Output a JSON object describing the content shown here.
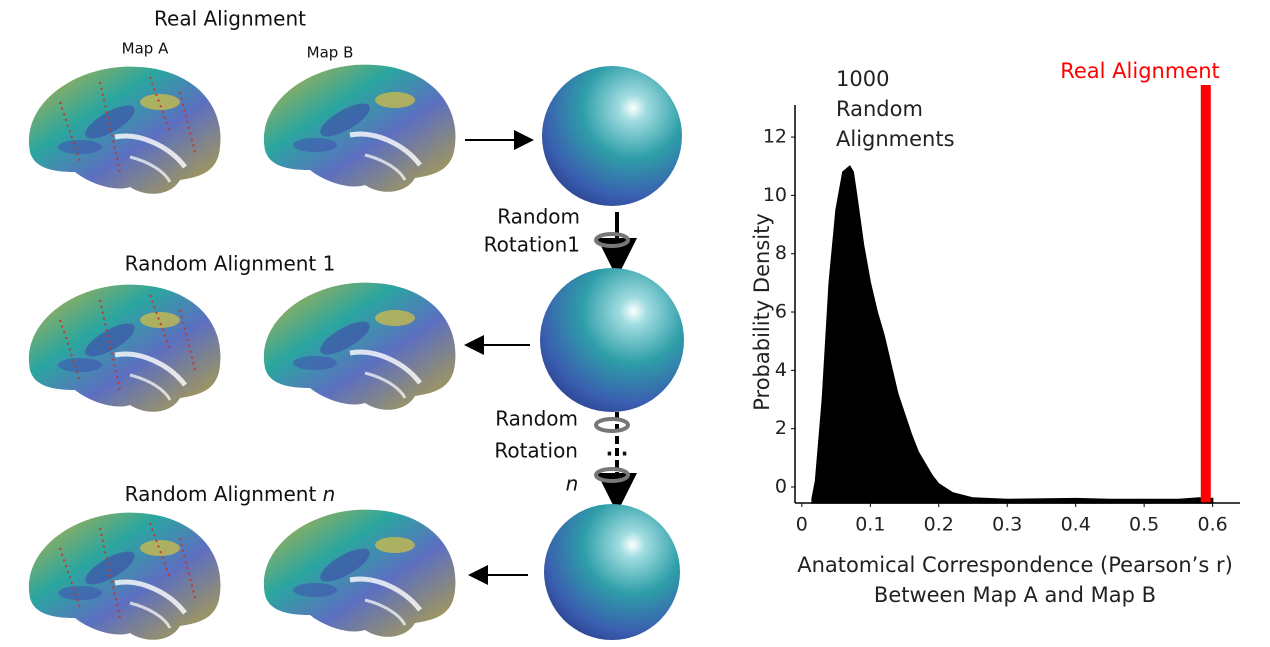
{
  "diagram": {
    "row_titles": [
      "Real Alignment",
      "Random Alignment 1",
      "Random Alignment "
    ],
    "row3_italic": "n",
    "map_labels": [
      "Map A",
      "Map B"
    ],
    "rotation_1": [
      "Random",
      "Rotation1"
    ],
    "rotation_n": [
      "Random",
      "Rotation",
      "...",
      "n"
    ]
  },
  "chart_data": {
    "type": "area",
    "annotation": [
      "1000",
      "Random",
      "Alignments"
    ],
    "x_label": [
      "Anatomical Correspondence (Pearson’s r)",
      "Between Map A and Map B"
    ],
    "y_label": "Probability Density",
    "x": [
      0.015,
      0.02,
      0.03,
      0.04,
      0.05,
      0.06,
      0.07,
      0.075,
      0.08,
      0.09,
      0.1,
      0.11,
      0.12,
      0.13,
      0.14,
      0.15,
      0.16,
      0.17,
      0.18,
      0.19,
      0.2,
      0.22,
      0.25,
      0.3,
      0.4,
      0.45,
      0.55,
      0.58,
      0.6
    ],
    "y": [
      -0.4,
      0.2,
      3,
      7,
      9.5,
      10.8,
      11,
      10.8,
      10,
      8.3,
      7,
      6,
      5.2,
      4.2,
      3.2,
      2.5,
      1.8,
      1.2,
      0.8,
      0.4,
      0.1,
      -0.2,
      -0.38,
      -0.43,
      -0.4,
      -0.43,
      -0.43,
      -0.38,
      -0.4
    ],
    "color": "#000000",
    "real_alignment": {
      "x": 0.59,
      "label": "Real Alignment",
      "color": "#ff0000"
    },
    "xlim": [
      -0.01,
      0.64
    ],
    "ylim": [
      -0.55,
      13.1
    ],
    "xticks": [
      0,
      0.1,
      0.2,
      0.3,
      0.4,
      0.5,
      0.6
    ],
    "yticks": [
      0,
      2,
      4,
      6,
      8,
      10,
      12
    ]
  }
}
